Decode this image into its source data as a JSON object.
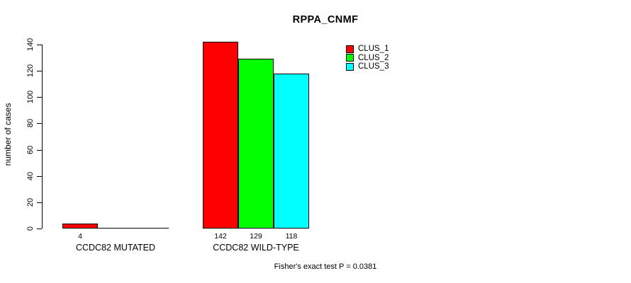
{
  "figure": {
    "background": "#ffffff",
    "foreground": "#000000"
  },
  "chart_data": {
    "type": "bar",
    "title": "RPPA_CNMF",
    "xlabel": "",
    "ylabel": "number of cases",
    "ylim": [
      0,
      140
    ],
    "yticks": [
      0,
      20,
      40,
      60,
      80,
      100,
      120,
      140
    ],
    "grid": false,
    "legend_position": "top-right",
    "categories": [
      "CCDC82 MUTATED",
      "CCDC82 WILD-TYPE"
    ],
    "series": [
      {
        "name": "CLUS_1",
        "color": "#ff0000",
        "values": [
          4,
          142
        ]
      },
      {
        "name": "CLUS_2",
        "color": "#00ff00",
        "values": [
          0,
          129
        ]
      },
      {
        "name": "CLUS_3",
        "color": "#00ffff",
        "values": [
          0,
          118
        ]
      }
    ],
    "bar_value_labels": [
      [
        "4",
        "",
        ""
      ],
      [
        "142",
        "129",
        "118"
      ]
    ],
    "annotation": "Fisher's exact test P = 0.0381"
  }
}
